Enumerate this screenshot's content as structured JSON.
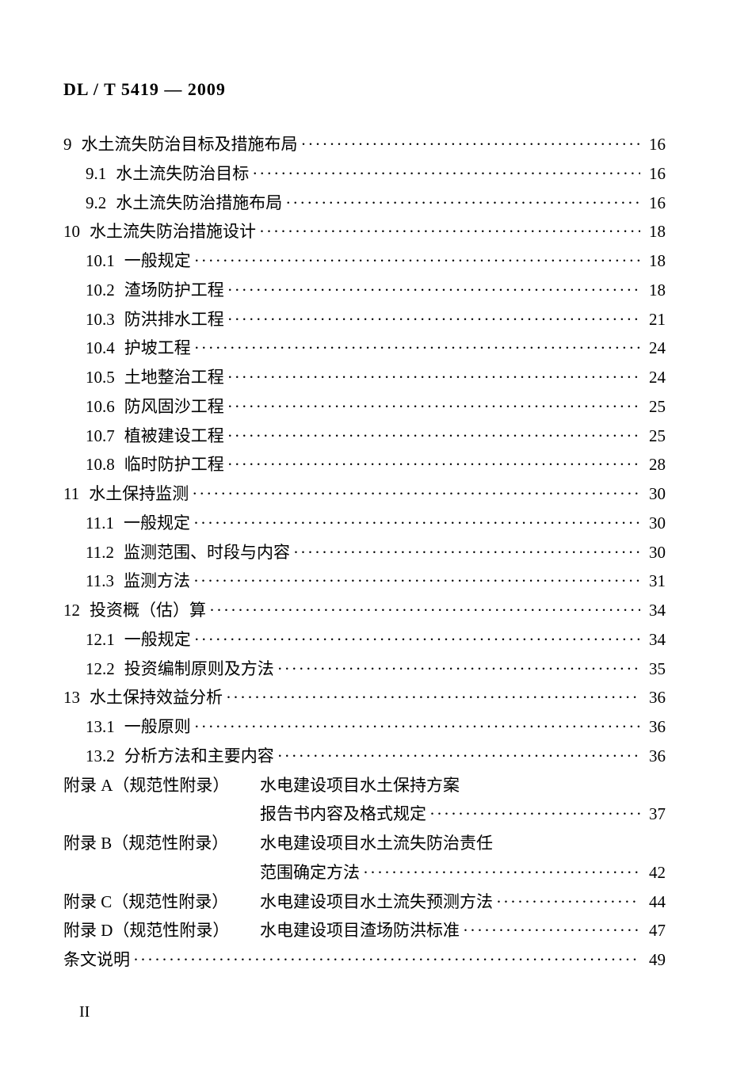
{
  "document": {
    "standard_code": "DL / T 5419 — 2009",
    "page_number": "II",
    "font_family": "SimSun",
    "text_color": "#000000",
    "background_color": "#ffffff",
    "body_fontsize": 21,
    "header_fontsize": 22,
    "line_height": 1.75,
    "dot_leader_char": "·"
  },
  "toc": [
    {
      "level": 1,
      "num": "9",
      "title": "水土流失防治目标及措施布局",
      "page": "16"
    },
    {
      "level": 2,
      "num": "9.1",
      "title": "水土流失防治目标",
      "page": "16"
    },
    {
      "level": 2,
      "num": "9.2",
      "title": "水土流失防治措施布局",
      "page": "16"
    },
    {
      "level": 1,
      "num": "10",
      "title": "水土流失防治措施设计",
      "page": "18"
    },
    {
      "level": 2,
      "num": "10.1",
      "title": "一般规定",
      "page": "18"
    },
    {
      "level": 2,
      "num": "10.2",
      "title": "渣场防护工程",
      "page": "18"
    },
    {
      "level": 2,
      "num": "10.3",
      "title": "防洪排水工程",
      "page": "21"
    },
    {
      "level": 2,
      "num": "10.4",
      "title": "护坡工程",
      "page": "24"
    },
    {
      "level": 2,
      "num": "10.5",
      "title": "土地整治工程",
      "page": "24"
    },
    {
      "level": 2,
      "num": "10.6",
      "title": "防风固沙工程",
      "page": "25"
    },
    {
      "level": 2,
      "num": "10.7",
      "title": "植被建设工程",
      "page": "25"
    },
    {
      "level": 2,
      "num": "10.8",
      "title": "临时防护工程",
      "page": "28"
    },
    {
      "level": 1,
      "num": "11",
      "title": "水土保持监测",
      "page": "30"
    },
    {
      "level": 2,
      "num": "11.1",
      "title": "一般规定",
      "page": "30"
    },
    {
      "level": 2,
      "num": "11.2",
      "title": "监测范围、时段与内容",
      "page": "30"
    },
    {
      "level": 2,
      "num": "11.3",
      "title": "监测方法",
      "page": "31"
    },
    {
      "level": 1,
      "num": "12",
      "title": "投资概（估）算",
      "page": "34"
    },
    {
      "level": 2,
      "num": "12.1",
      "title": "一般规定",
      "page": "34"
    },
    {
      "level": 2,
      "num": "12.2",
      "title": "投资编制原则及方法",
      "page": "35"
    },
    {
      "level": 1,
      "num": "13",
      "title": "水土保持效益分析",
      "page": "36"
    },
    {
      "level": 2,
      "num": "13.1",
      "title": "一般原则",
      "page": "36"
    },
    {
      "level": 2,
      "num": "13.2",
      "title": "分析方法和主要内容",
      "page": "36"
    }
  ],
  "appendices": [
    {
      "label": "附录 A（规范性附录）",
      "title_line1": "水电建设项目水土保持方案",
      "title_line2": "报告书内容及格式规定",
      "page": "37"
    },
    {
      "label": "附录 B（规范性附录）",
      "title_line1": "水电建设项目水土流失防治责任",
      "title_line2": "范围确定方法",
      "page": "42"
    },
    {
      "label": "附录 C（规范性附录）",
      "title_line1": "水电建设项目水土流失预测方法",
      "title_line2": "",
      "page": "44"
    },
    {
      "label": "附录 D（规范性附录）",
      "title_line1": "水电建设项目渣场防洪标准",
      "title_line2": "",
      "page": "47"
    }
  ],
  "explanation": {
    "label": "条文说明",
    "page": "49"
  }
}
